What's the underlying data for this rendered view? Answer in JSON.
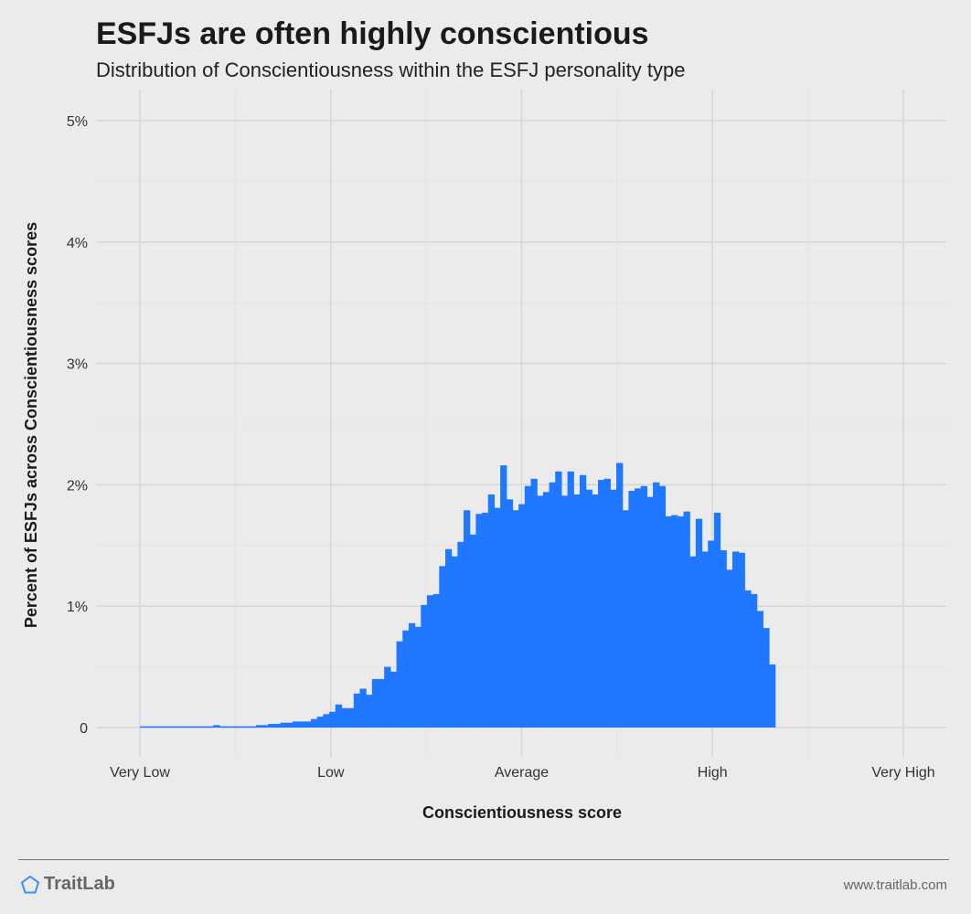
{
  "header": {
    "title": "ESFJs are often highly conscientious",
    "subtitle": "Distribution of Conscientiousness within the ESFJ personality type"
  },
  "footer": {
    "brand": "TraitLab",
    "brand_icon": "pentagon-logo-icon",
    "site": "www.traitlab.com"
  },
  "colors": {
    "background": "#ebebeb",
    "bar": "#1f78ff",
    "grid_major": "#d6d6d6",
    "grid_minor": "#e3e3e3",
    "brand_icon": "#3b8cff"
  },
  "chart_data": {
    "type": "bar",
    "xlabel": "Conscientiousness score",
    "ylabel": "Percent of ESFJs across Conscientiousness scores",
    "xlim": [
      0,
      100
    ],
    "ylim": [
      0,
      5
    ],
    "x_ticks": [
      {
        "value": 0,
        "label": "Very Low"
      },
      {
        "value": 25,
        "label": "Low"
      },
      {
        "value": 50,
        "label": "Average"
      },
      {
        "value": 75,
        "label": "High"
      },
      {
        "value": 100,
        "label": "Very High"
      }
    ],
    "y_ticks": [
      {
        "value": 0,
        "label": "0"
      },
      {
        "value": 1,
        "label": "1%"
      },
      {
        "value": 2,
        "label": "2%"
      },
      {
        "value": 3,
        "label": "3%"
      },
      {
        "value": 4,
        "label": "4%"
      },
      {
        "value": 5,
        "label": "5%"
      }
    ],
    "grid": true,
    "bin_width": 0.8,
    "values": [
      0.01,
      0.01,
      0.01,
      0.01,
      0.01,
      0.01,
      0.01,
      0.01,
      0.01,
      0.01,
      0.01,
      0.01,
      0.02,
      0.01,
      0.01,
      0.01,
      0.01,
      0.01,
      0.01,
      0.02,
      0.02,
      0.03,
      0.03,
      0.04,
      0.04,
      0.05,
      0.05,
      0.05,
      0.07,
      0.09,
      0.11,
      0.13,
      0.19,
      0.16,
      0.16,
      0.28,
      0.32,
      0.27,
      0.4,
      0.4,
      0.5,
      0.46,
      0.71,
      0.8,
      0.86,
      0.83,
      1.01,
      1.09,
      1.1,
      1.33,
      1.47,
      1.41,
      1.53,
      1.79,
      1.59,
      1.76,
      1.77,
      1.92,
      1.81,
      2.16,
      1.88,
      1.79,
      1.84,
      1.99,
      2.05,
      1.91,
      1.94,
      2.02,
      2.11,
      1.91,
      2.11,
      1.92,
      2.08,
      1.96,
      1.92,
      2.04,
      2.05,
      1.96,
      2.18,
      1.79,
      1.95,
      1.97,
      1.99,
      1.9,
      2.02,
      1.99,
      1.74,
      1.75,
      1.74,
      1.78,
      1.41,
      1.72,
      1.45,
      1.54,
      1.77,
      1.46,
      1.3,
      1.45,
      1.44,
      1.13,
      1.1,
      0.96,
      0.82,
      0.52
    ]
  }
}
